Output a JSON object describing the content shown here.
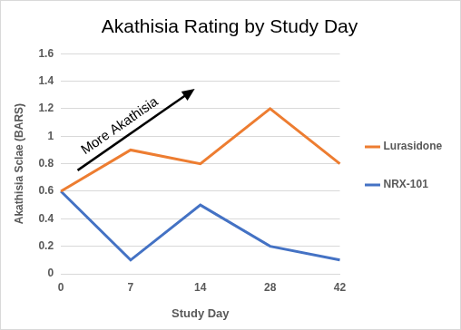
{
  "chart_data": {
    "type": "line",
    "title": "Akathisia Rating by Study Day",
    "x_label": "Study Day",
    "y_label": "Akathisia Sclae (BARS)",
    "categories": [
      "0",
      "7",
      "14",
      "28",
      "42"
    ],
    "series": [
      {
        "name": "Lurasidone",
        "color": "#ed7d31",
        "values": [
          0.6,
          0.9,
          0.8,
          1.2,
          0.8
        ]
      },
      {
        "name": "NRX-101",
        "color": "#4472c4",
        "values": [
          0.6,
          0.1,
          0.5,
          0.2,
          0.1
        ]
      }
    ],
    "ylim": [
      0,
      1.6
    ],
    "yticks": [
      0,
      0.2,
      0.4,
      0.6,
      0.8,
      1,
      1.2,
      1.4,
      1.6
    ],
    "grid": true,
    "legend": "right",
    "marker": "none",
    "line_style": "solid",
    "annotations": [
      {
        "text": "More Akathisia"
      }
    ]
  }
}
